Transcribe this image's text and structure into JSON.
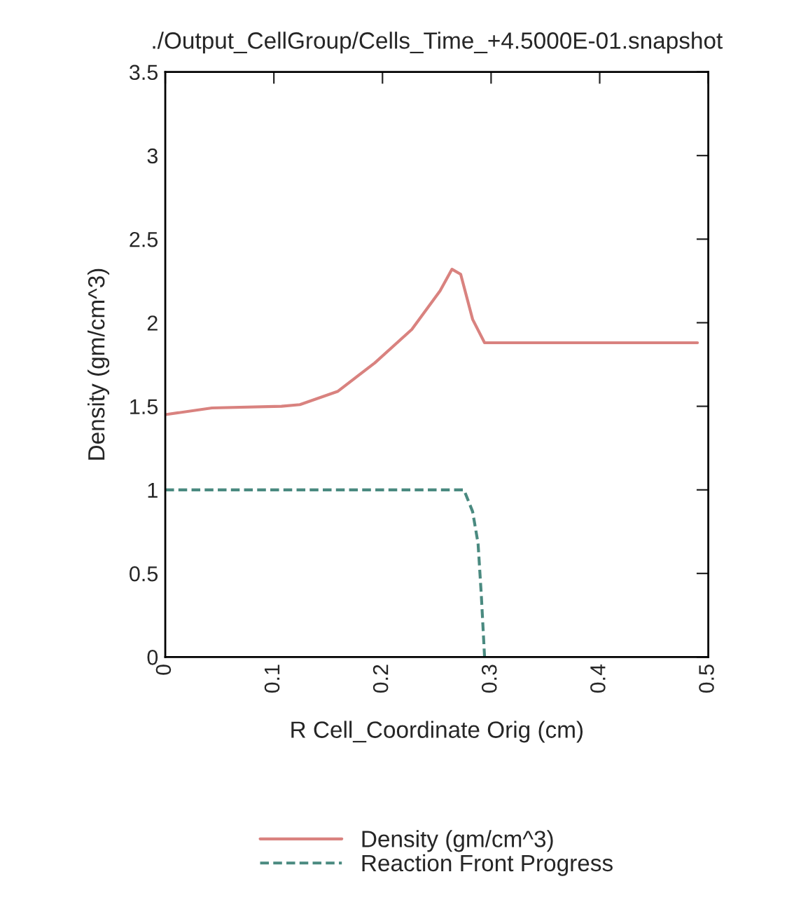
{
  "chart_data": {
    "type": "line",
    "title": "./Output_CellGroup/Cells_Time_+4.5000E-01.snapshot",
    "xlabel": "R Cell_Coordinate Orig (cm)",
    "ylabel": "Density (gm/cm^3)",
    "xlim": [
      0,
      0.5
    ],
    "xticks": [
      0,
      0.1,
      0.2,
      0.3,
      0.4,
      0.5
    ],
    "ylim": [
      0,
      3.5
    ],
    "yticks": [
      0,
      0.5,
      1,
      1.5,
      2,
      2.5,
      3,
      3.5
    ],
    "grid": false,
    "legend": "bottom",
    "marker": "none",
    "series": [
      {
        "name": "Density (gm/cm^3)",
        "color": "#d9827f",
        "line_style": "solid",
        "x": [
          0,
          0.043,
          0.107,
          0.124,
          0.159,
          0.193,
          0.227,
          0.253,
          0.264,
          0.272,
          0.283,
          0.294,
          0.49
        ],
        "values": [
          1.45,
          1.49,
          1.5,
          1.51,
          1.59,
          1.76,
          1.96,
          2.19,
          2.32,
          2.29,
          2.02,
          1.88,
          1.88
        ]
      },
      {
        "name": "Reaction Front Progress",
        "color": "#4a8a80",
        "line_style": "dashed",
        "x": [
          0,
          0.275,
          0.283,
          0.288,
          0.291,
          0.294
        ],
        "values": [
          1,
          1,
          0.87,
          0.68,
          0.37,
          0
        ]
      }
    ]
  }
}
